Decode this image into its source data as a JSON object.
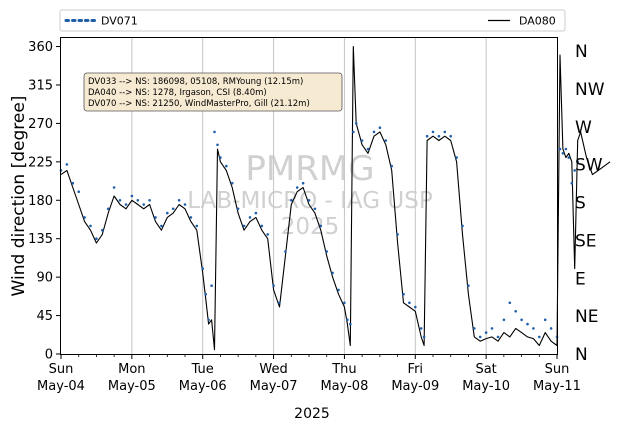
{
  "chart_data": {
    "type": "line",
    "xlabel": "2025",
    "ylabel": "Wind direction [degree]",
    "ylim": [
      0,
      370
    ],
    "yticks": [
      0,
      45,
      90,
      135,
      180,
      225,
      270,
      315,
      360
    ],
    "x_range": [
      "2025-05-04",
      "2025-05-11"
    ],
    "x_ticks": [
      {
        "day": "Sun",
        "date": "May-04"
      },
      {
        "day": "Mon",
        "date": "May-05"
      },
      {
        "day": "Tue",
        "date": "May-06"
      },
      {
        "day": "Wed",
        "date": "May-07"
      },
      {
        "day": "Thu",
        "date": "May-08"
      },
      {
        "day": "Fri",
        "date": "May-09"
      },
      {
        "day": "Sat",
        "date": "May-10"
      },
      {
        "day": "Sun",
        "date": "May-11"
      }
    ],
    "grid": "vertical-major",
    "compass_labels": [
      "N",
      "NE",
      "E",
      "SE",
      "S",
      "SW",
      "W",
      "NW",
      "N"
    ],
    "legend": {
      "placement": "top",
      "entries": [
        {
          "label": "DV071",
          "style": "dotted",
          "color": "#1f5fa8"
        },
        {
          "label": "DA080",
          "style": "solid",
          "color": "#000000"
        }
      ]
    },
    "annotation_lines": [
      "DV033 --> NS: 186098, 05108, RMYoung (12.15m)",
      "DA040 --> NS: 1278, Irgason, CSI (8.40m)",
      "DV070 --> NS: 21250, WindMasterPro, Gill (21.12m)"
    ],
    "watermark_lines": [
      "PMRMG",
      "LAB-MICRO - IAG USP",
      "2025"
    ],
    "series": [
      {
        "name": "DV071",
        "color": "#1f5fa8",
        "marker": "dot",
        "points": [
          [
            "2025-05-04 00:00",
            215
          ],
          [
            "2025-05-04 02:00",
            222
          ],
          [
            "2025-05-04 04:00",
            200
          ],
          [
            "2025-05-04 06:00",
            190
          ],
          [
            "2025-05-04 08:00",
            160
          ],
          [
            "2025-05-04 10:00",
            150
          ],
          [
            "2025-05-04 12:00",
            135
          ],
          [
            "2025-05-04 14:00",
            145
          ],
          [
            "2025-05-04 16:00",
            170
          ],
          [
            "2025-05-04 18:00",
            195
          ],
          [
            "2025-05-04 20:00",
            180
          ],
          [
            "2025-05-04 22:00",
            175
          ],
          [
            "2025-05-05 00:00",
            185
          ],
          [
            "2025-05-05 02:00",
            180
          ],
          [
            "2025-05-05 04:00",
            175
          ],
          [
            "2025-05-05 06:00",
            180
          ],
          [
            "2025-05-05 08:00",
            160
          ],
          [
            "2025-05-05 10:00",
            150
          ],
          [
            "2025-05-05 12:00",
            165
          ],
          [
            "2025-05-05 14:00",
            170
          ],
          [
            "2025-05-05 16:00",
            180
          ],
          [
            "2025-05-05 18:00",
            175
          ],
          [
            "2025-05-05 20:00",
            160
          ],
          [
            "2025-05-05 22:00",
            150
          ],
          [
            "2025-05-06 00:00",
            100
          ],
          [
            "2025-05-06 01:00",
            70
          ],
          [
            "2025-05-06 02:00",
            40
          ],
          [
            "2025-05-06 03:00",
            80
          ],
          [
            "2025-05-06 04:00",
            260
          ],
          [
            "2025-05-06 05:00",
            245
          ],
          [
            "2025-05-06 06:00",
            230
          ],
          [
            "2025-05-06 08:00",
            220
          ],
          [
            "2025-05-06 10:00",
            200
          ],
          [
            "2025-05-06 12:00",
            170
          ],
          [
            "2025-05-06 14:00",
            150
          ],
          [
            "2025-05-06 16:00",
            160
          ],
          [
            "2025-05-06 18:00",
            165
          ],
          [
            "2025-05-06 20:00",
            150
          ],
          [
            "2025-05-06 22:00",
            140
          ],
          [
            "2025-05-07 00:00",
            80
          ],
          [
            "2025-05-07 02:00",
            60
          ],
          [
            "2025-05-07 04:00",
            120
          ],
          [
            "2025-05-07 06:00",
            180
          ],
          [
            "2025-05-07 08:00",
            195
          ],
          [
            "2025-05-07 10:00",
            200
          ],
          [
            "2025-05-07 12:00",
            180
          ],
          [
            "2025-05-07 14:00",
            170
          ],
          [
            "2025-05-07 16:00",
            150
          ],
          [
            "2025-05-07 18:00",
            120
          ],
          [
            "2025-05-07 20:00",
            95
          ],
          [
            "2025-05-07 22:00",
            75
          ],
          [
            "2025-05-08 00:00",
            60
          ],
          [
            "2025-05-08 01:00",
            40
          ],
          [
            "2025-05-08 02:00",
            35
          ],
          [
            "2025-05-08 03:00",
            260
          ],
          [
            "2025-05-08 04:00",
            270
          ],
          [
            "2025-05-08 06:00",
            250
          ],
          [
            "2025-05-08 08:00",
            240
          ],
          [
            "2025-05-08 10:00",
            260
          ],
          [
            "2025-05-08 12:00",
            265
          ],
          [
            "2025-05-08 14:00",
            250
          ],
          [
            "2025-05-08 16:00",
            220
          ],
          [
            "2025-05-08 18:00",
            140
          ],
          [
            "2025-05-08 20:00",
            70
          ],
          [
            "2025-05-08 22:00",
            60
          ],
          [
            "2025-05-09 00:00",
            55
          ],
          [
            "2025-05-09 02:00",
            30
          ],
          [
            "2025-05-09 03:00",
            20
          ],
          [
            "2025-05-09 04:00",
            255
          ],
          [
            "2025-05-09 06:00",
            260
          ],
          [
            "2025-05-09 08:00",
            255
          ],
          [
            "2025-05-09 10:00",
            260
          ],
          [
            "2025-05-09 12:00",
            255
          ],
          [
            "2025-05-09 14:00",
            230
          ],
          [
            "2025-05-09 16:00",
            150
          ],
          [
            "2025-05-09 18:00",
            80
          ],
          [
            "2025-05-09 20:00",
            30
          ],
          [
            "2025-05-09 22:00",
            20
          ],
          [
            "2025-05-10 00:00",
            25
          ],
          [
            "2025-05-10 02:00",
            30
          ],
          [
            "2025-05-10 04:00",
            20
          ],
          [
            "2025-05-10 06:00",
            40
          ],
          [
            "2025-05-10 08:00",
            60
          ],
          [
            "2025-05-10 10:00",
            50
          ],
          [
            "2025-05-10 12:00",
            40
          ],
          [
            "2025-05-10 14:00",
            35
          ],
          [
            "2025-05-10 16:00",
            30
          ],
          [
            "2025-05-10 18:00",
            20
          ],
          [
            "2025-05-10 20:00",
            40
          ],
          [
            "2025-05-10 22:00",
            30
          ],
          [
            "2025-05-11 00:00",
            20
          ],
          [
            "2025-05-11 01:00",
            240
          ],
          [
            "2025-05-11 02:00",
            235
          ],
          [
            "2025-05-11 03:00",
            240
          ],
          [
            "2025-05-11 04:00",
            230
          ],
          [
            "2025-05-11 05:00",
            200
          ],
          [
            "2025-05-11 06:00",
            215
          ],
          [
            "2025-05-11 07:00",
            225
          ]
        ]
      },
      {
        "name": "DA080",
        "color": "#000000",
        "marker": "line",
        "points": [
          [
            "2025-05-04 00:00",
            210
          ],
          [
            "2025-05-04 02:00",
            215
          ],
          [
            "2025-05-04 04:00",
            195
          ],
          [
            "2025-05-04 06:00",
            175
          ],
          [
            "2025-05-04 08:00",
            155
          ],
          [
            "2025-05-04 10:00",
            145
          ],
          [
            "2025-05-04 12:00",
            130
          ],
          [
            "2025-05-04 14:00",
            140
          ],
          [
            "2025-05-04 16:00",
            165
          ],
          [
            "2025-05-04 18:00",
            185
          ],
          [
            "2025-05-04 20:00",
            175
          ],
          [
            "2025-05-04 22:00",
            170
          ],
          [
            "2025-05-05 00:00",
            180
          ],
          [
            "2025-05-05 02:00",
            175
          ],
          [
            "2025-05-05 04:00",
            170
          ],
          [
            "2025-05-05 06:00",
            175
          ],
          [
            "2025-05-05 08:00",
            155
          ],
          [
            "2025-05-05 10:00",
            145
          ],
          [
            "2025-05-05 12:00",
            160
          ],
          [
            "2025-05-05 14:00",
            165
          ],
          [
            "2025-05-05 16:00",
            175
          ],
          [
            "2025-05-05 18:00",
            170
          ],
          [
            "2025-05-05 20:00",
            155
          ],
          [
            "2025-05-05 22:00",
            145
          ],
          [
            "2025-05-06 00:00",
            95
          ],
          [
            "2025-05-06 01:00",
            65
          ],
          [
            "2025-05-06 02:00",
            35
          ],
          [
            "2025-05-06 03:00",
            40
          ],
          [
            "2025-05-06 04:00",
            5
          ],
          [
            "2025-05-06 05:00",
            240
          ],
          [
            "2025-05-06 06:00",
            225
          ],
          [
            "2025-05-06 08:00",
            215
          ],
          [
            "2025-05-06 10:00",
            195
          ],
          [
            "2025-05-06 12:00",
            165
          ],
          [
            "2025-05-06 14:00",
            145
          ],
          [
            "2025-05-06 16:00",
            155
          ],
          [
            "2025-05-06 18:00",
            160
          ],
          [
            "2025-05-06 20:00",
            145
          ],
          [
            "2025-05-06 22:00",
            135
          ],
          [
            "2025-05-07 00:00",
            75
          ],
          [
            "2025-05-07 02:00",
            55
          ],
          [
            "2025-05-07 04:00",
            115
          ],
          [
            "2025-05-07 06:00",
            175
          ],
          [
            "2025-05-07 08:00",
            190
          ],
          [
            "2025-05-07 10:00",
            195
          ],
          [
            "2025-05-07 12:00",
            175
          ],
          [
            "2025-05-07 14:00",
            165
          ],
          [
            "2025-05-07 16:00",
            145
          ],
          [
            "2025-05-07 18:00",
            115
          ],
          [
            "2025-05-07 20:00",
            90
          ],
          [
            "2025-05-07 22:00",
            70
          ],
          [
            "2025-05-08 00:00",
            55
          ],
          [
            "2025-05-08 01:00",
            35
          ],
          [
            "2025-05-08 02:00",
            10
          ],
          [
            "2025-05-08 03:00",
            360
          ],
          [
            "2025-05-08 04:00",
            270
          ],
          [
            "2025-05-08 06:00",
            245
          ],
          [
            "2025-05-08 08:00",
            235
          ],
          [
            "2025-05-08 10:00",
            255
          ],
          [
            "2025-05-08 12:00",
            260
          ],
          [
            "2025-05-08 14:00",
            245
          ],
          [
            "2025-05-08 16:00",
            215
          ],
          [
            "2025-05-08 18:00",
            130
          ],
          [
            "2025-05-08 20:00",
            60
          ],
          [
            "2025-05-08 22:00",
            55
          ],
          [
            "2025-05-09 00:00",
            50
          ],
          [
            "2025-05-09 02:00",
            20
          ],
          [
            "2025-05-09 03:00",
            10
          ],
          [
            "2025-05-09 04:00",
            250
          ],
          [
            "2025-05-09 06:00",
            255
          ],
          [
            "2025-05-09 08:00",
            250
          ],
          [
            "2025-05-09 10:00",
            255
          ],
          [
            "2025-05-09 12:00",
            250
          ],
          [
            "2025-05-09 14:00",
            225
          ],
          [
            "2025-05-09 16:00",
            140
          ],
          [
            "2025-05-09 18:00",
            70
          ],
          [
            "2025-05-09 20:00",
            20
          ],
          [
            "2025-05-09 22:00",
            15
          ],
          [
            "2025-05-10 00:00",
            18
          ],
          [
            "2025-05-10 02:00",
            20
          ],
          [
            "2025-05-10 04:00",
            15
          ],
          [
            "2025-05-10 06:00",
            25
          ],
          [
            "2025-05-10 08:00",
            20
          ],
          [
            "2025-05-10 10:00",
            30
          ],
          [
            "2025-05-10 12:00",
            25
          ],
          [
            "2025-05-10 14:00",
            20
          ],
          [
            "2025-05-10 16:00",
            18
          ],
          [
            "2025-05-10 18:00",
            10
          ],
          [
            "2025-05-10 20:00",
            25
          ],
          [
            "2025-05-10 22:00",
            15
          ],
          [
            "2025-05-11 00:00",
            10
          ],
          [
            "2025-05-11 01:00",
            350
          ],
          [
            "2025-05-11 02:00",
            240
          ],
          [
            "2025-05-11 03:00",
            230
          ],
          [
            "2025-05-11 04:00",
            235
          ],
          [
            "2025-05-11 05:00",
            225
          ],
          [
            "2025-05-11 06:00",
            100
          ],
          [
            "2025-05-11 07:00",
            250
          ],
          [
            "2025-05-11 08:00",
            260
          ],
          [
            "2025-05-11 10:00",
            230
          ],
          [
            "2025-05-11 12:00",
            210
          ],
          [
            "2025-05-11 14:00",
            215
          ],
          [
            "2025-05-11 16:00",
            220
          ],
          [
            "2025-05-11 18:00",
            225
          ]
        ]
      }
    ]
  }
}
